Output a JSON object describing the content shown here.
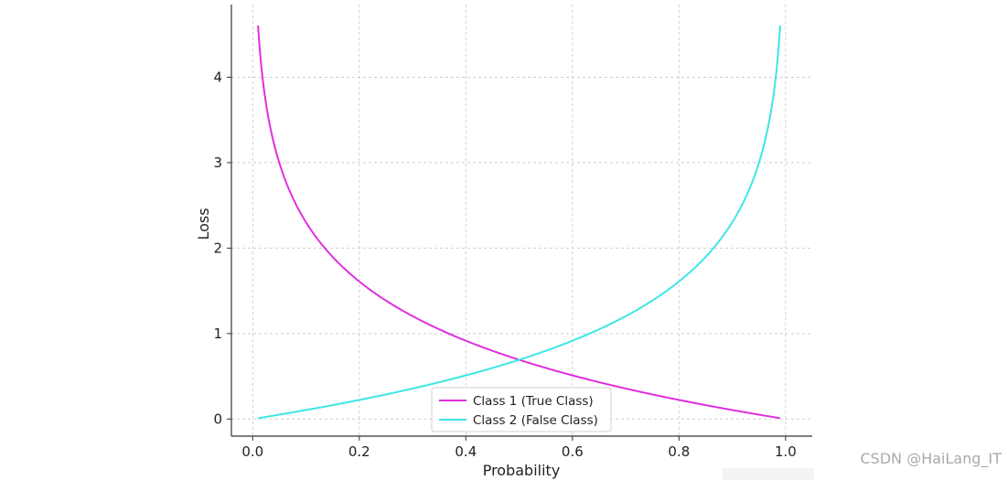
{
  "chart_data": {
    "type": "line",
    "title": "",
    "xlabel": "Probability",
    "ylabel": "Loss",
    "xlim": [
      -0.04,
      1.05
    ],
    "ylim": [
      -0.2,
      4.85
    ],
    "xticks": [
      "0.0",
      "0.2",
      "0.4",
      "0.6",
      "0.8",
      "1.0"
    ],
    "yticks": [
      "0",
      "1",
      "2",
      "3",
      "4"
    ],
    "grid": true,
    "legend_position": "bottom-center",
    "series": [
      {
        "name": "Class 1 (True Class)",
        "color": "#e02fe0",
        "x": [
          0.01,
          0.02,
          0.03,
          0.05,
          0.08,
          0.1,
          0.15,
          0.2,
          0.25,
          0.3,
          0.35,
          0.4,
          0.45,
          0.5,
          0.55,
          0.6,
          0.65,
          0.7,
          0.75,
          0.8,
          0.85,
          0.9,
          0.95,
          0.99
        ],
        "y": [
          4.61,
          3.91,
          3.51,
          3.0,
          2.53,
          2.3,
          1.9,
          1.61,
          1.39,
          1.2,
          1.05,
          0.92,
          0.8,
          0.69,
          0.6,
          0.51,
          0.43,
          0.36,
          0.29,
          0.22,
          0.16,
          0.11,
          0.05,
          0.01
        ]
      },
      {
        "name": "Class 2 (False Class)",
        "color": "#3ee6e6",
        "x": [
          0.01,
          0.05,
          0.1,
          0.15,
          0.2,
          0.25,
          0.3,
          0.35,
          0.4,
          0.45,
          0.5,
          0.55,
          0.6,
          0.65,
          0.7,
          0.75,
          0.8,
          0.85,
          0.9,
          0.92,
          0.95,
          0.97,
          0.98,
          0.99
        ],
        "y": [
          0.01,
          0.05,
          0.11,
          0.16,
          0.22,
          0.29,
          0.36,
          0.43,
          0.51,
          0.6,
          0.69,
          0.8,
          0.92,
          1.05,
          1.2,
          1.39,
          1.61,
          1.9,
          2.3,
          2.53,
          3.0,
          3.51,
          3.91,
          4.61
        ]
      }
    ]
  },
  "watermark": "CSDN @HaiLang_IT"
}
